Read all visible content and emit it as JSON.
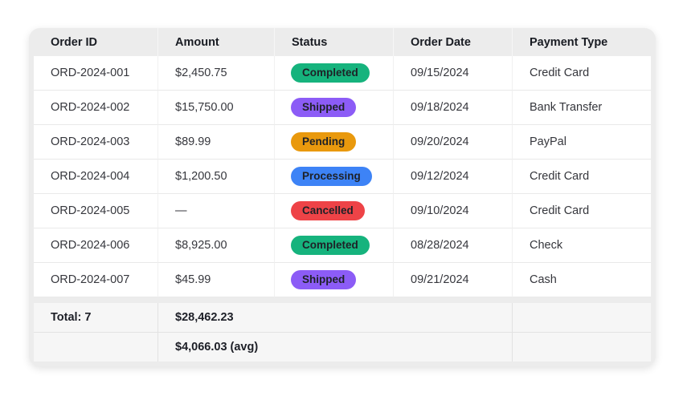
{
  "table": {
    "columns": [
      {
        "key": "order_id",
        "label": "Order ID"
      },
      {
        "key": "amount",
        "label": "Amount"
      },
      {
        "key": "status",
        "label": "Status"
      },
      {
        "key": "order_date",
        "label": "Order Date"
      },
      {
        "key": "payment_type",
        "label": "Payment Type"
      }
    ],
    "rows": [
      {
        "order_id": "ORD-2024-001",
        "amount": "$2,450.75",
        "status": "Completed",
        "order_date": "09/15/2024",
        "payment_type": "Credit Card"
      },
      {
        "order_id": "ORD-2024-002",
        "amount": "$15,750.00",
        "status": "Shipped",
        "order_date": "09/18/2024",
        "payment_type": "Bank Transfer"
      },
      {
        "order_id": "ORD-2024-003",
        "amount": "$89.99",
        "status": "Pending",
        "order_date": "09/20/2024",
        "payment_type": "PayPal"
      },
      {
        "order_id": "ORD-2024-004",
        "amount": "$1,200.50",
        "status": "Processing",
        "order_date": "09/12/2024",
        "payment_type": "Credit Card"
      },
      {
        "order_id": "ORD-2024-005",
        "amount": "—",
        "status": "Cancelled",
        "order_date": "09/10/2024",
        "payment_type": "Credit Card"
      },
      {
        "order_id": "ORD-2024-006",
        "amount": "$8,925.00",
        "status": "Completed",
        "order_date": "08/28/2024",
        "payment_type": "Check"
      },
      {
        "order_id": "ORD-2024-007",
        "amount": "$45.99",
        "status": "Shipped",
        "order_date": "09/21/2024",
        "payment_type": "Cash"
      }
    ],
    "status_colors": {
      "Completed": "#16b37d",
      "Shipped": "#8c5cf6",
      "Pending": "#e9990d",
      "Processing": "#3d83f6",
      "Cancelled": "#ee4347"
    },
    "footer": {
      "total_label": "Total: 7",
      "total_amount": "$28,462.23",
      "avg_amount": "$4,066.03 (avg)"
    },
    "frame_color": "#ececec",
    "footer_bg_color": "#f6f6f6"
  }
}
